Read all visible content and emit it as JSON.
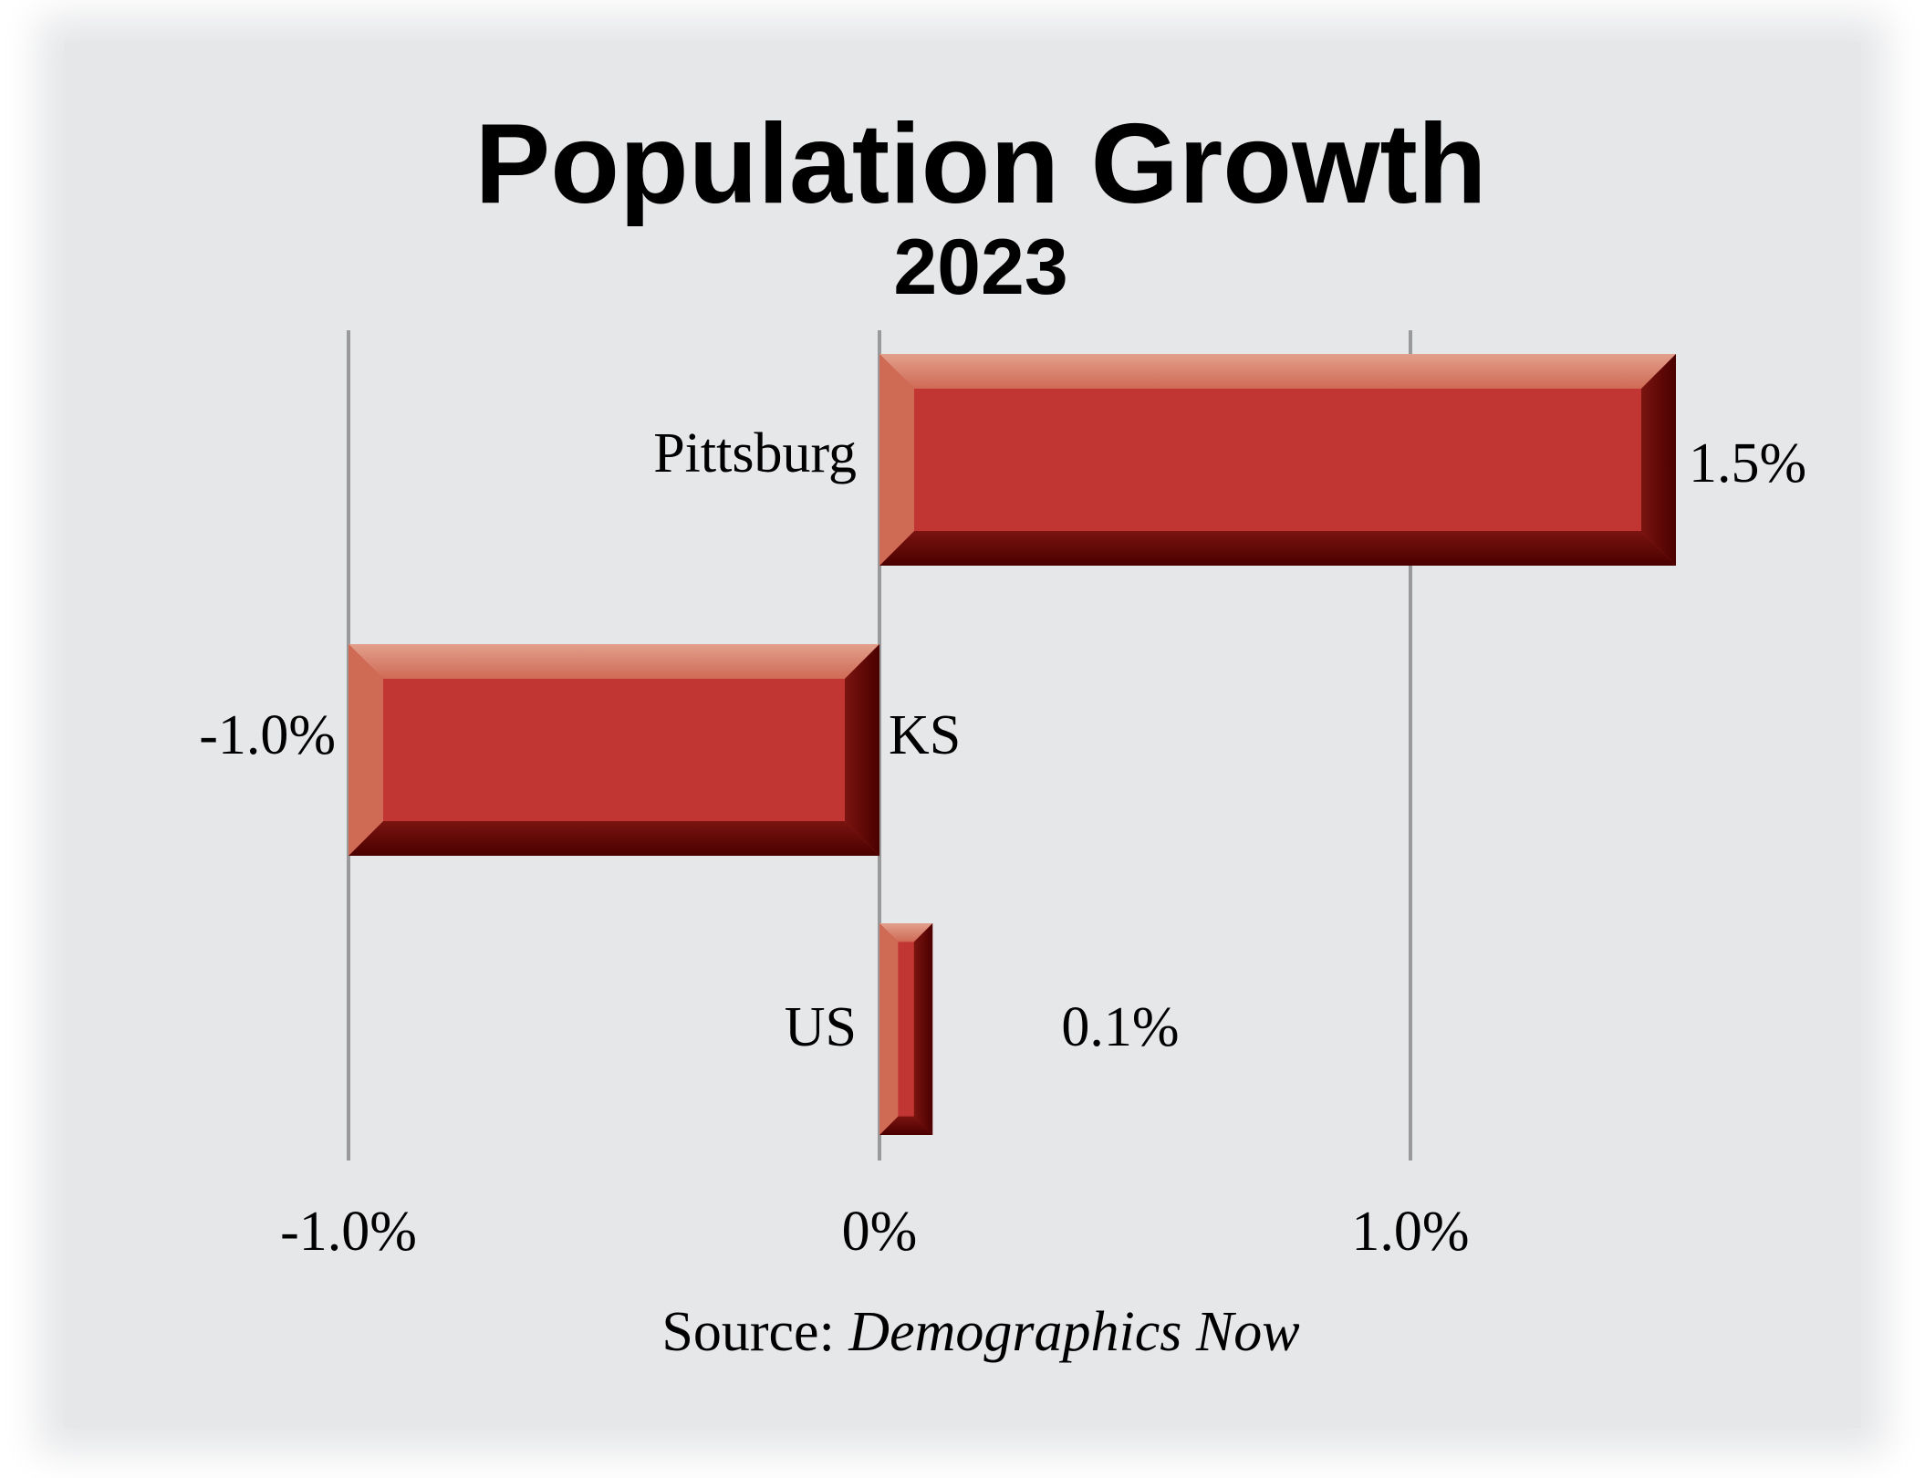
{
  "chart_data": {
    "type": "bar",
    "orientation": "horizontal",
    "title": "Population Growth",
    "subtitle": "2023",
    "categories": [
      "Pittsburg",
      "KS",
      "US"
    ],
    "values": [
      1.5,
      -1.0,
      0.1
    ],
    "value_labels": [
      "1.5%",
      "-1.0%",
      "0.1%"
    ],
    "x_ticks": [
      {
        "value": -1.0,
        "label": "-1.0%"
      },
      {
        "value": 0,
        "label": "0%"
      },
      {
        "value": 1.0,
        "label": "1.0%"
      }
    ],
    "xlim": [
      -1.0,
      1.5
    ],
    "grid": true,
    "legend": "none",
    "source_prefix": "Source: ",
    "source_name": "Demographics Now",
    "colors": {
      "bar_face": "#c13633",
      "bar_light": "#e2a08c",
      "bar_mid_light": "#cf6a55",
      "bar_dark": "#4a0000",
      "bar_dark_mid": "#7a1410",
      "gridline": "#9a9a9c",
      "background": "#e6e7e9"
    }
  }
}
